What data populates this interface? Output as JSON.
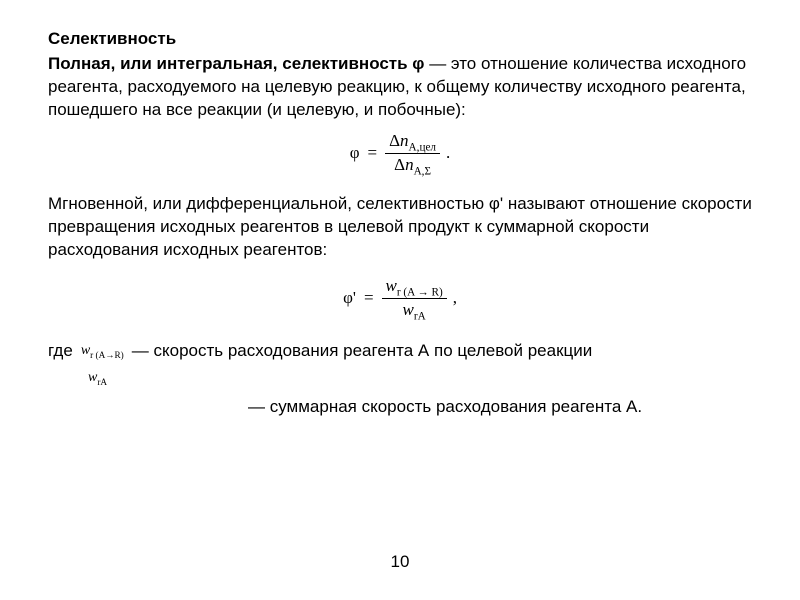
{
  "title": "Селективность",
  "para1": {
    "boldLead": "Полная, или интегральная, селективность φ",
    "rest": " — это отношение количества исходного реагента, расходуемого на целевую реакцию, к общему количеству исходного реагента, пошедшего на все реакции (и целевую, и побочные):"
  },
  "formula1": {
    "lhs": "φ",
    "eq": "=",
    "num_delta": "Δ",
    "num_var": "n",
    "num_sub": "A,цел",
    "den_delta": "Δ",
    "den_var": "n",
    "den_sub": "A,Σ",
    "trail": "."
  },
  "para2": "Мгновенной, или дифференциальной, селективностью φ' называют отношение скорости превращения исходных реагентов в целевой продукт к суммарной скорости расходования исходных реагентов:",
  "formula2": {
    "lhs": "φ'",
    "eq": "=",
    "num_var": "w",
    "num_sub": "r (A → R)",
    "den_var": "w",
    "den_sub": "rA",
    "trail": ","
  },
  "whereLine": {
    "where": "где",
    "sym_var": "w",
    "sym_sub": "r (A→R)",
    "dash": " — скорость расходования реагента А по целевой реакции"
  },
  "whereLine2": {
    "sym_var": "w",
    "sym_sub": "rA",
    "text": "— суммарная скорость расходования реагента А."
  },
  "pageNumber": "10",
  "colors": {
    "text": "#000000",
    "bg": "#ffffff"
  },
  "fonts": {
    "body": "Arial",
    "math": "Times New Roman",
    "bodySize": 17,
    "mathSize": 17,
    "smallMathSize": 14
  }
}
